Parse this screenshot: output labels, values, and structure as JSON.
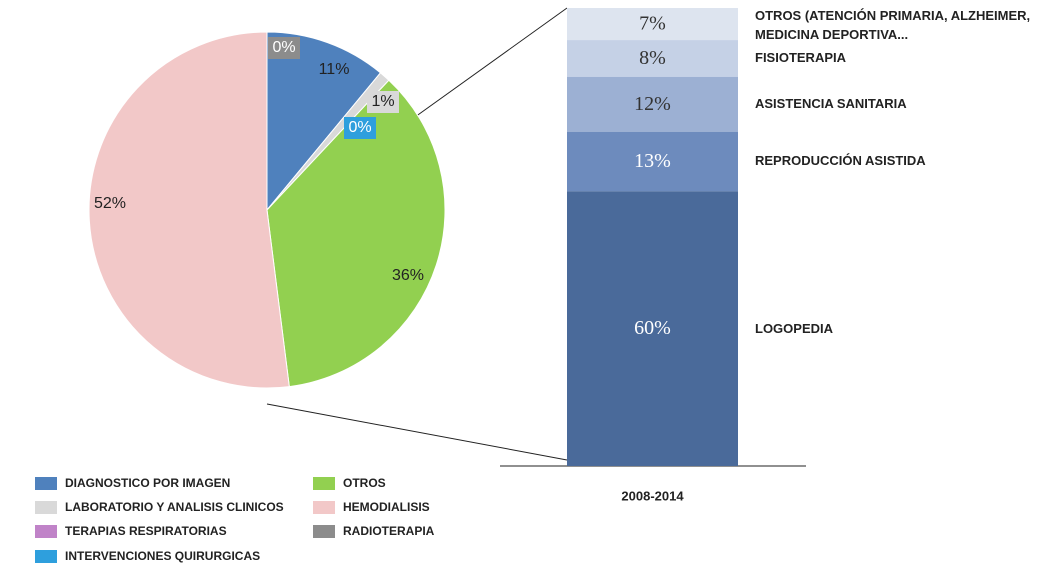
{
  "chart_data": [
    {
      "type": "pie",
      "categories": [
        "DIAGNOSTICO POR IMAGEN",
        "LABORATORIO Y ANALISIS CLINICOS",
        "TERAPIAS RESPIRATORIAS",
        "INTERVENCIONES QUIRURGICAS",
        "OTROS",
        "HEMODIALISIS",
        "RADIOTERAPIA"
      ],
      "values": [
        11,
        1,
        0,
        0,
        36,
        52,
        0
      ],
      "value_labels": [
        "11%",
        "1%",
        null,
        "0%",
        "36%",
        "52%",
        "0%"
      ],
      "colors": [
        "#4f81bd",
        "#d9d9d9",
        "#c083c8",
        "#2e9fdd",
        "#92d050",
        "#f2c8c8",
        "#8c8c8c"
      ]
    },
    {
      "type": "stacked_bar",
      "categories": [
        "2008-2014"
      ],
      "series": [
        {
          "name": "LOGOPEDIA",
          "color": "#4a6a9a",
          "values": [
            60
          ],
          "value_labels": [
            "60%"
          ]
        },
        {
          "name": "REPRODUCCIÓN ASISTIDA",
          "color": "#6d8bbd",
          "values": [
            13
          ],
          "value_labels": [
            "13%"
          ]
        },
        {
          "name": "ASISTENCIA SANITARIA",
          "color": "#9cb0d3",
          "values": [
            12
          ],
          "value_labels": [
            "12%"
          ]
        },
        {
          "name": "FISIOTERAPIA",
          "color": "#c5d1e6",
          "values": [
            8
          ],
          "value_labels": [
            "8%"
          ]
        },
        {
          "name": "OTROS (ATENCIÓN PRIMARIA, ALZHEIMER, MEDICINA DEPORTIVA...",
          "color": "#dde4ef",
          "values": [
            7
          ],
          "value_labels": [
            "7%"
          ]
        }
      ]
    }
  ]
}
